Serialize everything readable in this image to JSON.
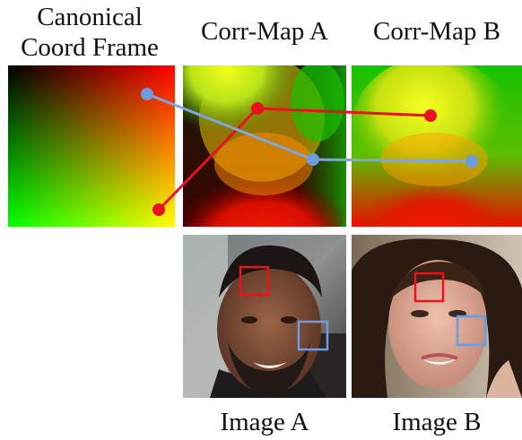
{
  "labels": {
    "canonical_line1": "Canonical",
    "canonical_line2": "Coord Frame",
    "corr_map_a": "Corr-Map A",
    "corr_map_b": "Corr-Map B",
    "image_a": "Image A",
    "image_b": "Image B"
  },
  "colors": {
    "red_marker": "#e8131f",
    "blue_marker": "#6c9be0",
    "red_line": "#e8131f",
    "blue_line": "#7fa6de"
  }
}
